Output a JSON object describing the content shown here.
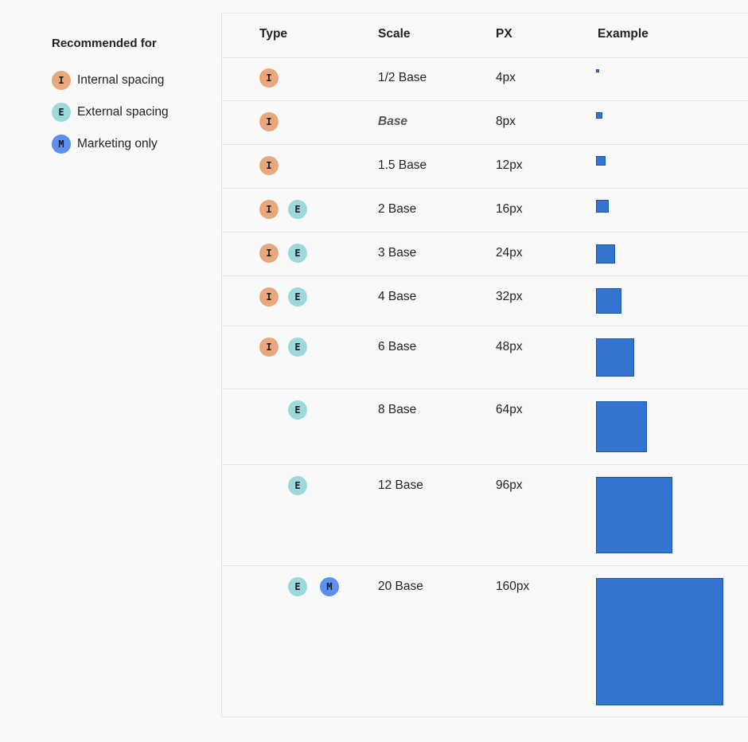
{
  "legend": {
    "title": "Recommended for",
    "items": [
      {
        "code": "I",
        "kind": "i",
        "label": "Internal spacing"
      },
      {
        "code": "E",
        "kind": "e",
        "label": "External spacing"
      },
      {
        "code": "M",
        "kind": "m",
        "label": "Marketing only"
      }
    ]
  },
  "table": {
    "headers": {
      "type": "Type",
      "scale": "Scale",
      "px": "PX",
      "example": "Example"
    },
    "rows": [
      {
        "types": [
          "I"
        ],
        "scale": "1/2 Base",
        "px": "4px",
        "value": 4
      },
      {
        "types": [
          "I"
        ],
        "scale": "Base",
        "px": "8px",
        "value": 8,
        "emphasis": true
      },
      {
        "types": [
          "I"
        ],
        "scale": "1.5 Base",
        "px": "12px",
        "value": 12
      },
      {
        "types": [
          "I",
          "E"
        ],
        "scale": "2 Base",
        "px": "16px",
        "value": 16
      },
      {
        "types": [
          "I",
          "E"
        ],
        "scale": "3 Base",
        "px": "24px",
        "value": 24
      },
      {
        "types": [
          "I",
          "E"
        ],
        "scale": "4 Base",
        "px": "32px",
        "value": 32
      },
      {
        "types": [
          "I",
          "E"
        ],
        "scale": "6 Base",
        "px": "48px",
        "value": 48
      },
      {
        "types": [
          "E"
        ],
        "scale": "8 Base",
        "px": "64px",
        "value": 64
      },
      {
        "types": [
          "E"
        ],
        "scale": "12 Base",
        "px": "96px",
        "value": 96
      },
      {
        "types": [
          "E",
          "M"
        ],
        "scale": "20 Base",
        "px": "160px",
        "value": 160
      }
    ]
  },
  "colors": {
    "internal": "#e8a77c",
    "external": "#9bd9dc",
    "marketing": "#5b8ff0",
    "swatch": "#3374d1"
  }
}
